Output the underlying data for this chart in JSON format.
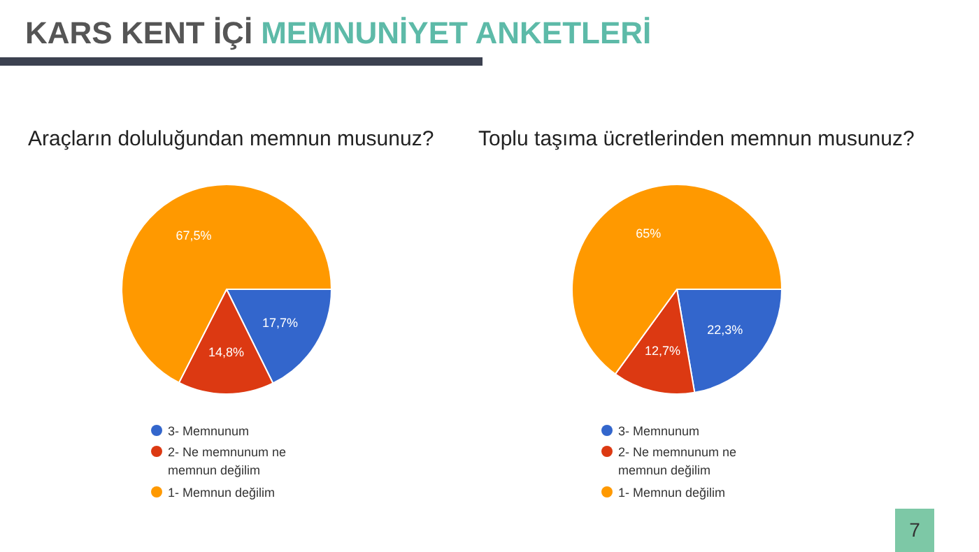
{
  "chart_data": [
    {
      "type": "pie",
      "title": "Araçların doluluğundan memnun musunuz?",
      "categories": [
        "3- Memnunum",
        "2- Ne memnunum ne memnun değilim",
        "1- Memnun değilim"
      ],
      "values": [
        17.7,
        14.8,
        67.5
      ],
      "value_labels": [
        "17,7%",
        "14,8%",
        "67,5%"
      ],
      "colors": [
        "#3366cc",
        "#dc3912",
        "#ff9900"
      ],
      "legend": "bottom",
      "annotations": [
        "KARS KENT İÇİ",
        "MEMNUNİYET ANKETLERİ",
        "7"
      ]
    },
    {
      "type": "pie",
      "title": "Toplu taşıma ücretlerinden memnun musunuz?",
      "categories": [
        "3- Memnunum",
        "2- Ne memnunum ne memnun değilim",
        "1- Memnun değilim"
      ],
      "values": [
        22.3,
        12.7,
        65
      ],
      "value_labels": [
        "22,3%",
        "12,7%",
        "65%"
      ],
      "colors": [
        "#3366cc",
        "#dc3912",
        "#ff9900"
      ],
      "legend": "bottom"
    }
  ]
}
